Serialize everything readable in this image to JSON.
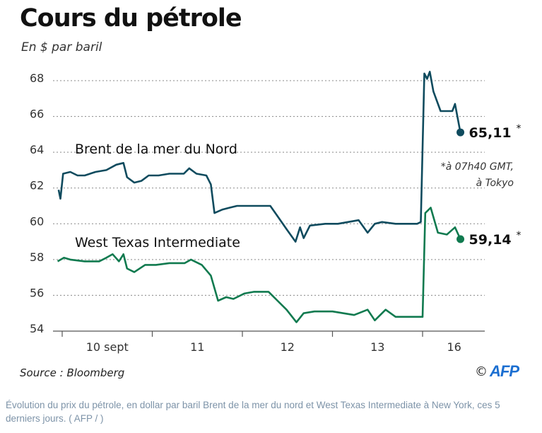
{
  "title": "Cours du pétrole",
  "subtitle": "En $ par baril",
  "source": "Source : Bloomberg",
  "logo": {
    "copyright": "©",
    "brand": "AFP"
  },
  "caption": "Évolution du prix du pétrole, en dollar par baril Brent de la mer du nord et West Texas Intermediate à New York, ces 5 derniers jours. ( AFP / )",
  "chart_data": {
    "type": "line",
    "title": "Cours du pétrole",
    "ylabel": "En $ par baril",
    "ylim": [
      54,
      68
    ],
    "yticks": [
      "68",
      "66",
      "64",
      "62",
      "60",
      "58",
      "56",
      "54"
    ],
    "ytick_values": [
      68,
      66,
      64,
      62,
      60,
      58,
      56,
      54
    ],
    "categories": [
      "10 sept",
      "11",
      "12",
      "13",
      "16"
    ],
    "grid": "horizontal dotted",
    "note": "*à 07h40 GMT, à Tokyo",
    "note_lines": [
      "*à 07h40 GMT,",
      "à Tokyo"
    ],
    "series": [
      {
        "name": "Brent de la mer du Nord",
        "color": "#0f4b5e",
        "last_label": "65,11",
        "last_marker": "*",
        "x": [
          -0.04,
          -0.02,
          0.01,
          0.09,
          0.17,
          0.25,
          0.37,
          0.49,
          0.6,
          0.68,
          0.72,
          0.8,
          0.88,
          0.96,
          1.07,
          1.19,
          1.35,
          1.41,
          1.49,
          1.6,
          1.65,
          1.69,
          1.78,
          1.86,
          1.94,
          2.04,
          2.17,
          2.31,
          2.38,
          2.49,
          2.59,
          2.64,
          2.68,
          2.75,
          2.92,
          3.06,
          3.29,
          3.39,
          3.47,
          3.55,
          3.7,
          3.94,
          3.98,
          4.02,
          4.05,
          4.08,
          4.12,
          4.2,
          4.33,
          4.36,
          4.42
        ],
        "y": [
          61.9,
          61.4,
          62.8,
          62.9,
          62.7,
          62.7,
          62.9,
          63.0,
          63.3,
          63.4,
          62.6,
          62.3,
          62.4,
          62.7,
          62.7,
          62.8,
          62.8,
          63.1,
          62.8,
          62.7,
          62.2,
          60.6,
          60.8,
          60.9,
          61.0,
          61.0,
          61.0,
          61.0,
          60.5,
          59.7,
          59.0,
          59.8,
          59.2,
          59.9,
          60.0,
          60.0,
          60.2,
          59.5,
          60.0,
          60.1,
          60.0,
          60.0,
          60.1,
          68.4,
          68.1,
          68.5,
          67.4,
          66.3,
          66.3,
          66.7,
          65.11
        ]
      },
      {
        "name": "West Texas Intermediate",
        "color": "#107a4f",
        "last_label": "59,14",
        "last_marker": "*",
        "x": [
          -0.05,
          0.02,
          0.09,
          0.25,
          0.41,
          0.49,
          0.56,
          0.63,
          0.68,
          0.72,
          0.8,
          0.92,
          1.04,
          1.19,
          1.36,
          1.43,
          1.55,
          1.65,
          1.73,
          1.82,
          1.9,
          2.02,
          2.13,
          2.29,
          2.39,
          2.49,
          2.6,
          2.68,
          2.8,
          3.0,
          3.24,
          3.39,
          3.47,
          3.59,
          3.7,
          3.94,
          4.0,
          4.03,
          4.05,
          4.09,
          4.17,
          4.27,
          4.36,
          4.42
        ],
        "y": [
          57.9,
          58.1,
          58.0,
          57.9,
          57.9,
          58.1,
          58.3,
          57.9,
          58.3,
          57.5,
          57.3,
          57.7,
          57.7,
          57.8,
          57.8,
          58.0,
          57.7,
          57.1,
          55.7,
          55.9,
          55.8,
          56.1,
          56.2,
          56.2,
          55.7,
          55.2,
          54.5,
          55.0,
          55.1,
          55.1,
          54.9,
          55.2,
          54.6,
          55.2,
          54.8,
          54.8,
          54.8,
          60.6,
          60.7,
          60.9,
          59.5,
          59.4,
          59.8,
          59.14
        ]
      }
    ]
  }
}
